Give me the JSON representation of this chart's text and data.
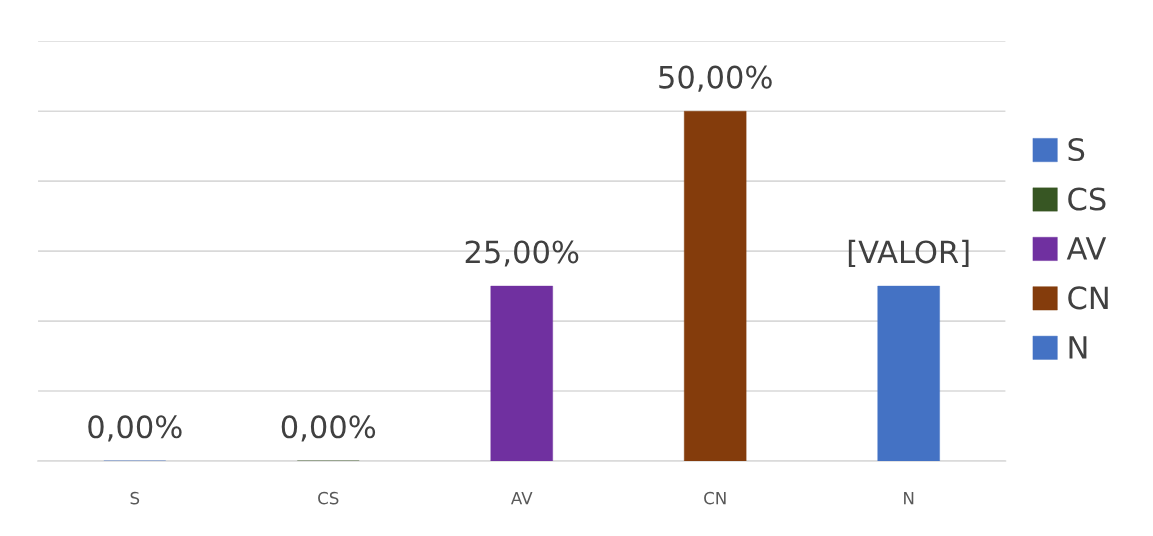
{
  "chart_data": {
    "type": "bar",
    "categories": [
      "S",
      "CS",
      "AV",
      "CN",
      "N"
    ],
    "series": [
      {
        "name": "S",
        "color": "#4472c4",
        "values": [
          0,
          null,
          null,
          null,
          null
        ],
        "value_labels": [
          "0,00%",
          null,
          null,
          null,
          null
        ]
      },
      {
        "name": "CS",
        "color": "#375623",
        "values": [
          null,
          0,
          null,
          null,
          null
        ],
        "value_labels": [
          null,
          "0,00%",
          null,
          null,
          null
        ]
      },
      {
        "name": "AV",
        "color": "#7030a0",
        "values": [
          null,
          null,
          25,
          null,
          null
        ],
        "value_labels": [
          null,
          null,
          "25,00%",
          null,
          null
        ]
      },
      {
        "name": "CN",
        "color": "#843c0c",
        "values": [
          null,
          null,
          null,
          50,
          null
        ],
        "value_labels": [
          null,
          null,
          null,
          "50,00%",
          null
        ]
      },
      {
        "name": "N",
        "color": "#4472c4",
        "values": [
          null,
          null,
          null,
          null,
          25
        ],
        "value_labels": [
          null,
          null,
          null,
          null,
          "[VALOR]"
        ]
      }
    ],
    "ylim": [
      0,
      60
    ],
    "yticks": [
      {
        "value": 0,
        "label": null
      },
      {
        "value": 10,
        "label": null
      },
      {
        "value": 20,
        "label": null
      },
      {
        "value": 30,
        "label": null
      },
      {
        "value": 40,
        "label": null
      },
      {
        "value": 50,
        "label": null
      },
      {
        "value": 60,
        "label": null
      }
    ],
    "tick_labels": "x",
    "grid": "y",
    "legend": "right"
  }
}
